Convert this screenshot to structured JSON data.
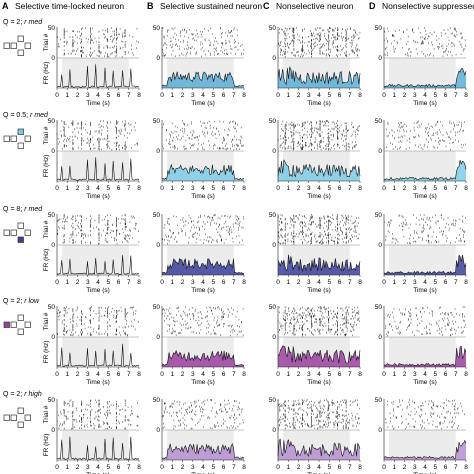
{
  "columns": [
    {
      "letter": "A",
      "title": "Selective time-locked neuron"
    },
    {
      "letter": "B",
      "title": "Selective sustained neuron"
    },
    {
      "letter": "C",
      "title": "Nonselective neuron"
    },
    {
      "letter": "D",
      "title": "Nonselective suppressed neuron"
    }
  ],
  "rows": [
    {
      "q": "Q = 2; ",
      "r": "r med",
      "fill": "#5aaed6",
      "icon": "none"
    },
    {
      "q": "Q = 0.5; ",
      "r": "r med",
      "fill": "#7dcbe6",
      "icon": "top-right"
    },
    {
      "q": "Q = 8; ",
      "r": "r med",
      "fill": "#3b3f9a",
      "icon": "bottom-right"
    },
    {
      "q": "Q = 2; ",
      "r": "r low",
      "fill": "#9c3fa0",
      "icon": "left"
    },
    {
      "q": "Q = 2; ",
      "r": "r high",
      "fill": "#b58fcf",
      "icon": "none"
    }
  ],
  "axes": {
    "trial_label": "Trial #",
    "fr_label": "FR (Hz)",
    "x_label": "Time (s)",
    "trial_ticks": [
      "0",
      "50"
    ],
    "time_ticks": [
      "0",
      "1",
      "2",
      "3",
      "4",
      "5",
      "6",
      "7",
      "8"
    ]
  },
  "chart_data": {
    "type": "raster-psth-grid",
    "x_range_s": [
      0,
      8
    ],
    "trial_range": [
      0,
      50
    ],
    "shaded_interval_s": [
      0.5,
      7
    ],
    "series_by_row": [
      "Q = 2; r med",
      "Q = 0.5; r med",
      "Q = 8; r med",
      "Q = 2; r low",
      "Q = 2; r high"
    ],
    "series_by_column": [
      "Selective time-locked neuron",
      "Selective sustained neuron",
      "Nonselective neuron",
      "Nonselective suppressed neuron"
    ],
    "density_by_column": [
      0.35,
      0.55,
      0.85,
      0.45
    ]
  }
}
